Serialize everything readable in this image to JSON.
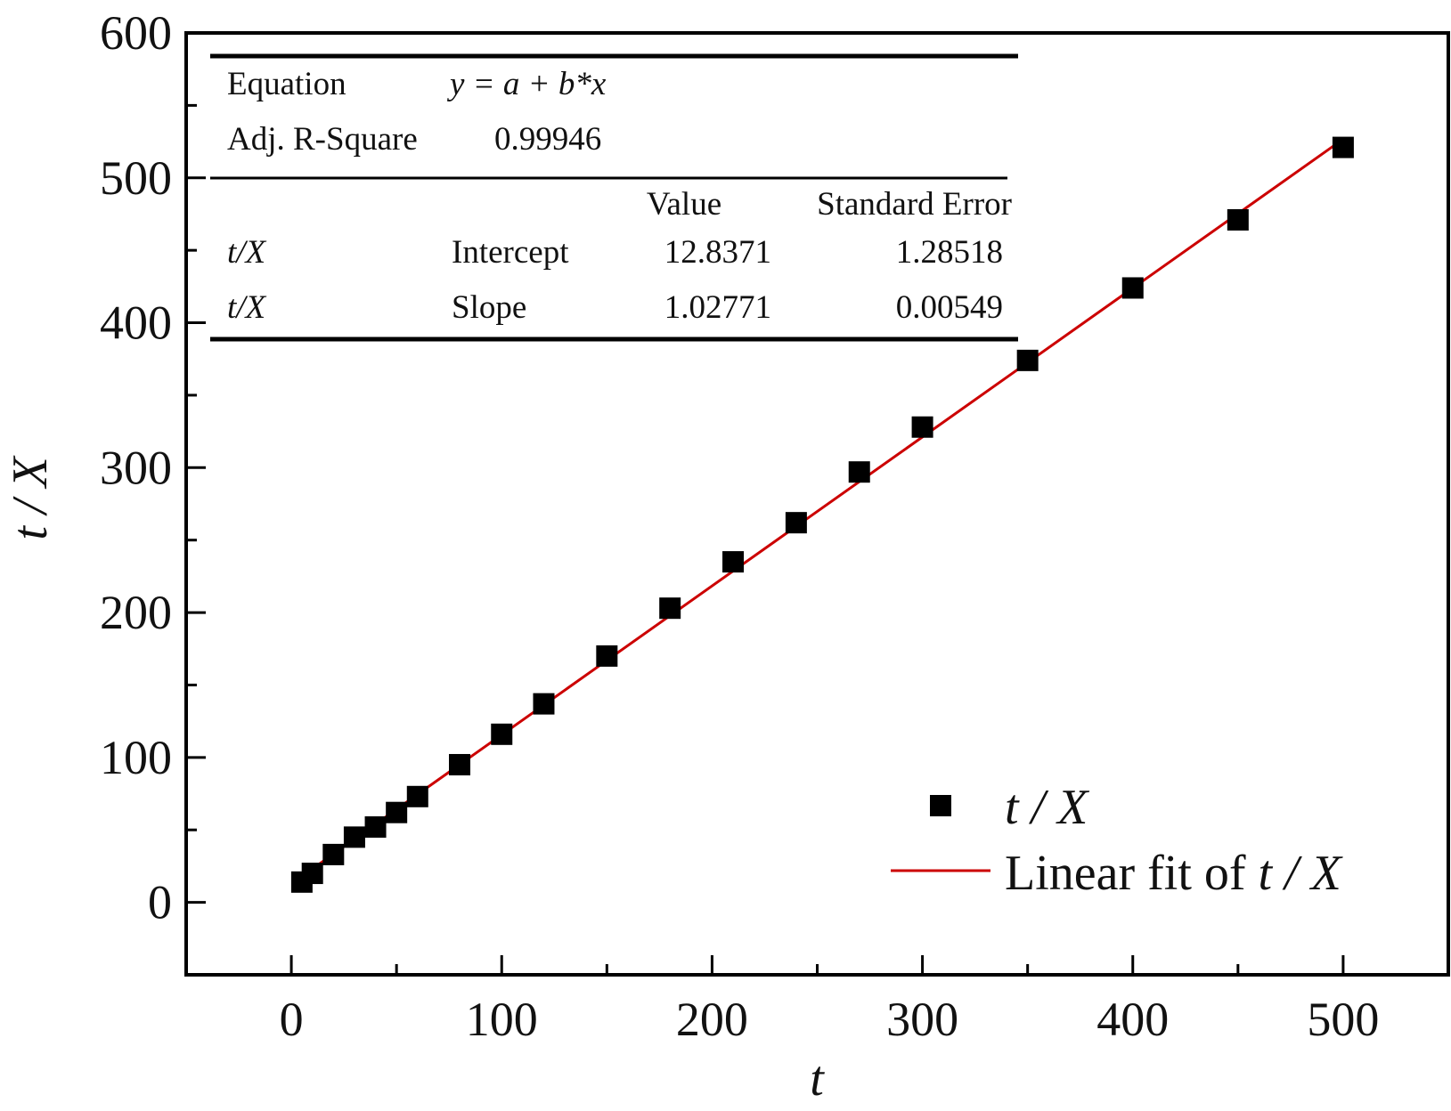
{
  "chart_data": {
    "type": "scatter",
    "xlabel": "t",
    "ylabel": "t / X",
    "xlim": [
      -50,
      550
    ],
    "ylim": [
      -50,
      600
    ],
    "x_ticks": [
      0,
      100,
      200,
      300,
      400,
      500
    ],
    "y_ticks": [
      0,
      100,
      200,
      300,
      400,
      500,
      600
    ],
    "x_tick_labels": [
      "0",
      "100",
      "200",
      "300",
      "400",
      "500"
    ],
    "y_tick_labels": [
      "0",
      "100",
      "200",
      "300",
      "400",
      "500",
      "600"
    ],
    "grid": false,
    "legend_position": "bottom-right",
    "series": [
      {
        "name": "t / X",
        "kind": "scatter",
        "marker": "square",
        "color": "#000000",
        "x": [
          5,
          10,
          20,
          30,
          40,
          50,
          60,
          80,
          100,
          120,
          150,
          180,
          210,
          240,
          270,
          300,
          350,
          400,
          450,
          500
        ],
        "y": [
          14,
          20,
          33,
          45,
          52,
          62,
          73,
          95,
          116,
          137,
          170,
          203,
          235,
          262,
          297,
          328,
          374,
          424,
          471,
          521
        ]
      },
      {
        "name": "Linear fit of t / X",
        "kind": "line",
        "color": "#cc0000",
        "intercept": 12.8371,
        "slope": 1.02771,
        "x_range": [
          5,
          500
        ]
      }
    ],
    "legend": {
      "scatter_name": "t / X",
      "fit_prefix": "Linear fit of ",
      "fit_suffix": "t / X"
    },
    "stats_table": {
      "equation_label": "Equation",
      "equation": "y = a + b*x",
      "adj_r2_label": "Adj. R-Square",
      "adj_r2": "0.99946",
      "value_header": "Value",
      "se_header": "Standard Error",
      "rows": [
        {
          "name": "t/X",
          "param": "Intercept",
          "value": "12.8371",
          "se": "1.28518"
        },
        {
          "name": "t/X",
          "param": "Slope",
          "value": "1.02771",
          "se": "0.00549"
        }
      ]
    }
  }
}
